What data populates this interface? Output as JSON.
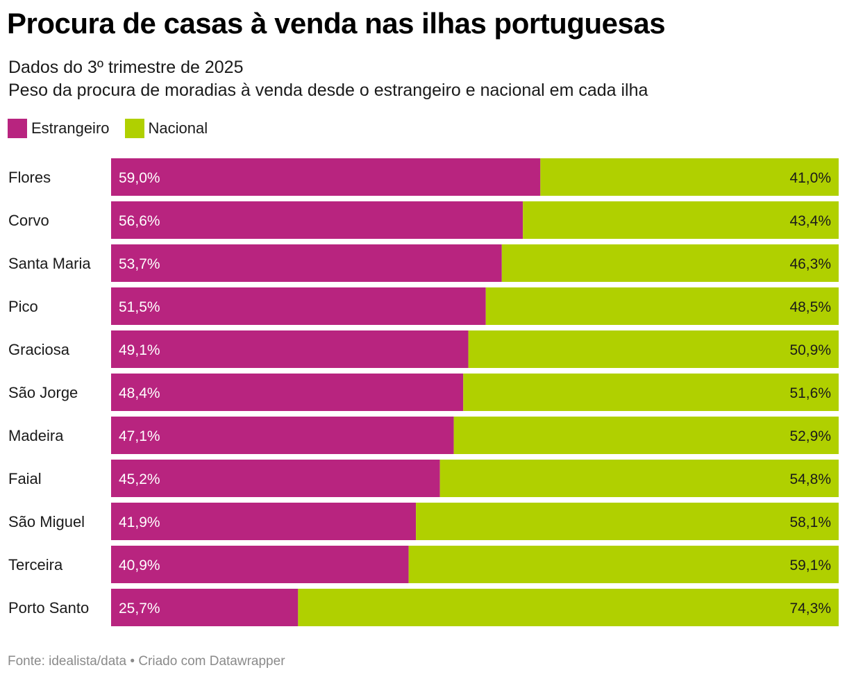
{
  "title": "Procura de casas à venda nas ilhas portuguesas",
  "subtitle_line1": "Dados do 3º trimestre de 2025",
  "subtitle_line2": "Peso da procura de moradias à venda desde o estrangeiro e nacional em cada ilha",
  "footer": "Fonte: idealista/data • Criado com Datawrapper",
  "colors": {
    "estrangeiro": "#b8247f",
    "nacional": "#b0d000"
  },
  "chart_data": {
    "type": "bar",
    "orientation": "horizontal",
    "stacked": true,
    "unit": "%",
    "categories": [
      "Flores",
      "Corvo",
      "Santa Maria",
      "Pico",
      "Graciosa",
      "São Jorge",
      "Madeira",
      "Faial",
      "São Miguel",
      "Terceira",
      "Porto Santo"
    ],
    "series": [
      {
        "name": "Estrangeiro",
        "values": [
          59.0,
          56.6,
          53.7,
          51.5,
          49.1,
          48.4,
          47.1,
          45.2,
          41.9,
          40.9,
          25.7
        ],
        "labels": [
          "59,0%",
          "56,6%",
          "53,7%",
          "51,5%",
          "49,1%",
          "48,4%",
          "47,1%",
          "45,2%",
          "41,9%",
          "40,9%",
          "25,7%"
        ]
      },
      {
        "name": "Nacional",
        "values": [
          41.0,
          43.4,
          46.3,
          48.5,
          50.9,
          51.6,
          52.9,
          54.8,
          58.1,
          59.1,
          74.3
        ],
        "labels": [
          "41,0%",
          "43,4%",
          "46,3%",
          "48,5%",
          "50,9%",
          "51,6%",
          "52,9%",
          "54,8%",
          "58,1%",
          "59,1%",
          "74,3%"
        ]
      }
    ],
    "xlim": [
      0,
      100
    ],
    "legend_position": "top-left",
    "grid": false
  }
}
